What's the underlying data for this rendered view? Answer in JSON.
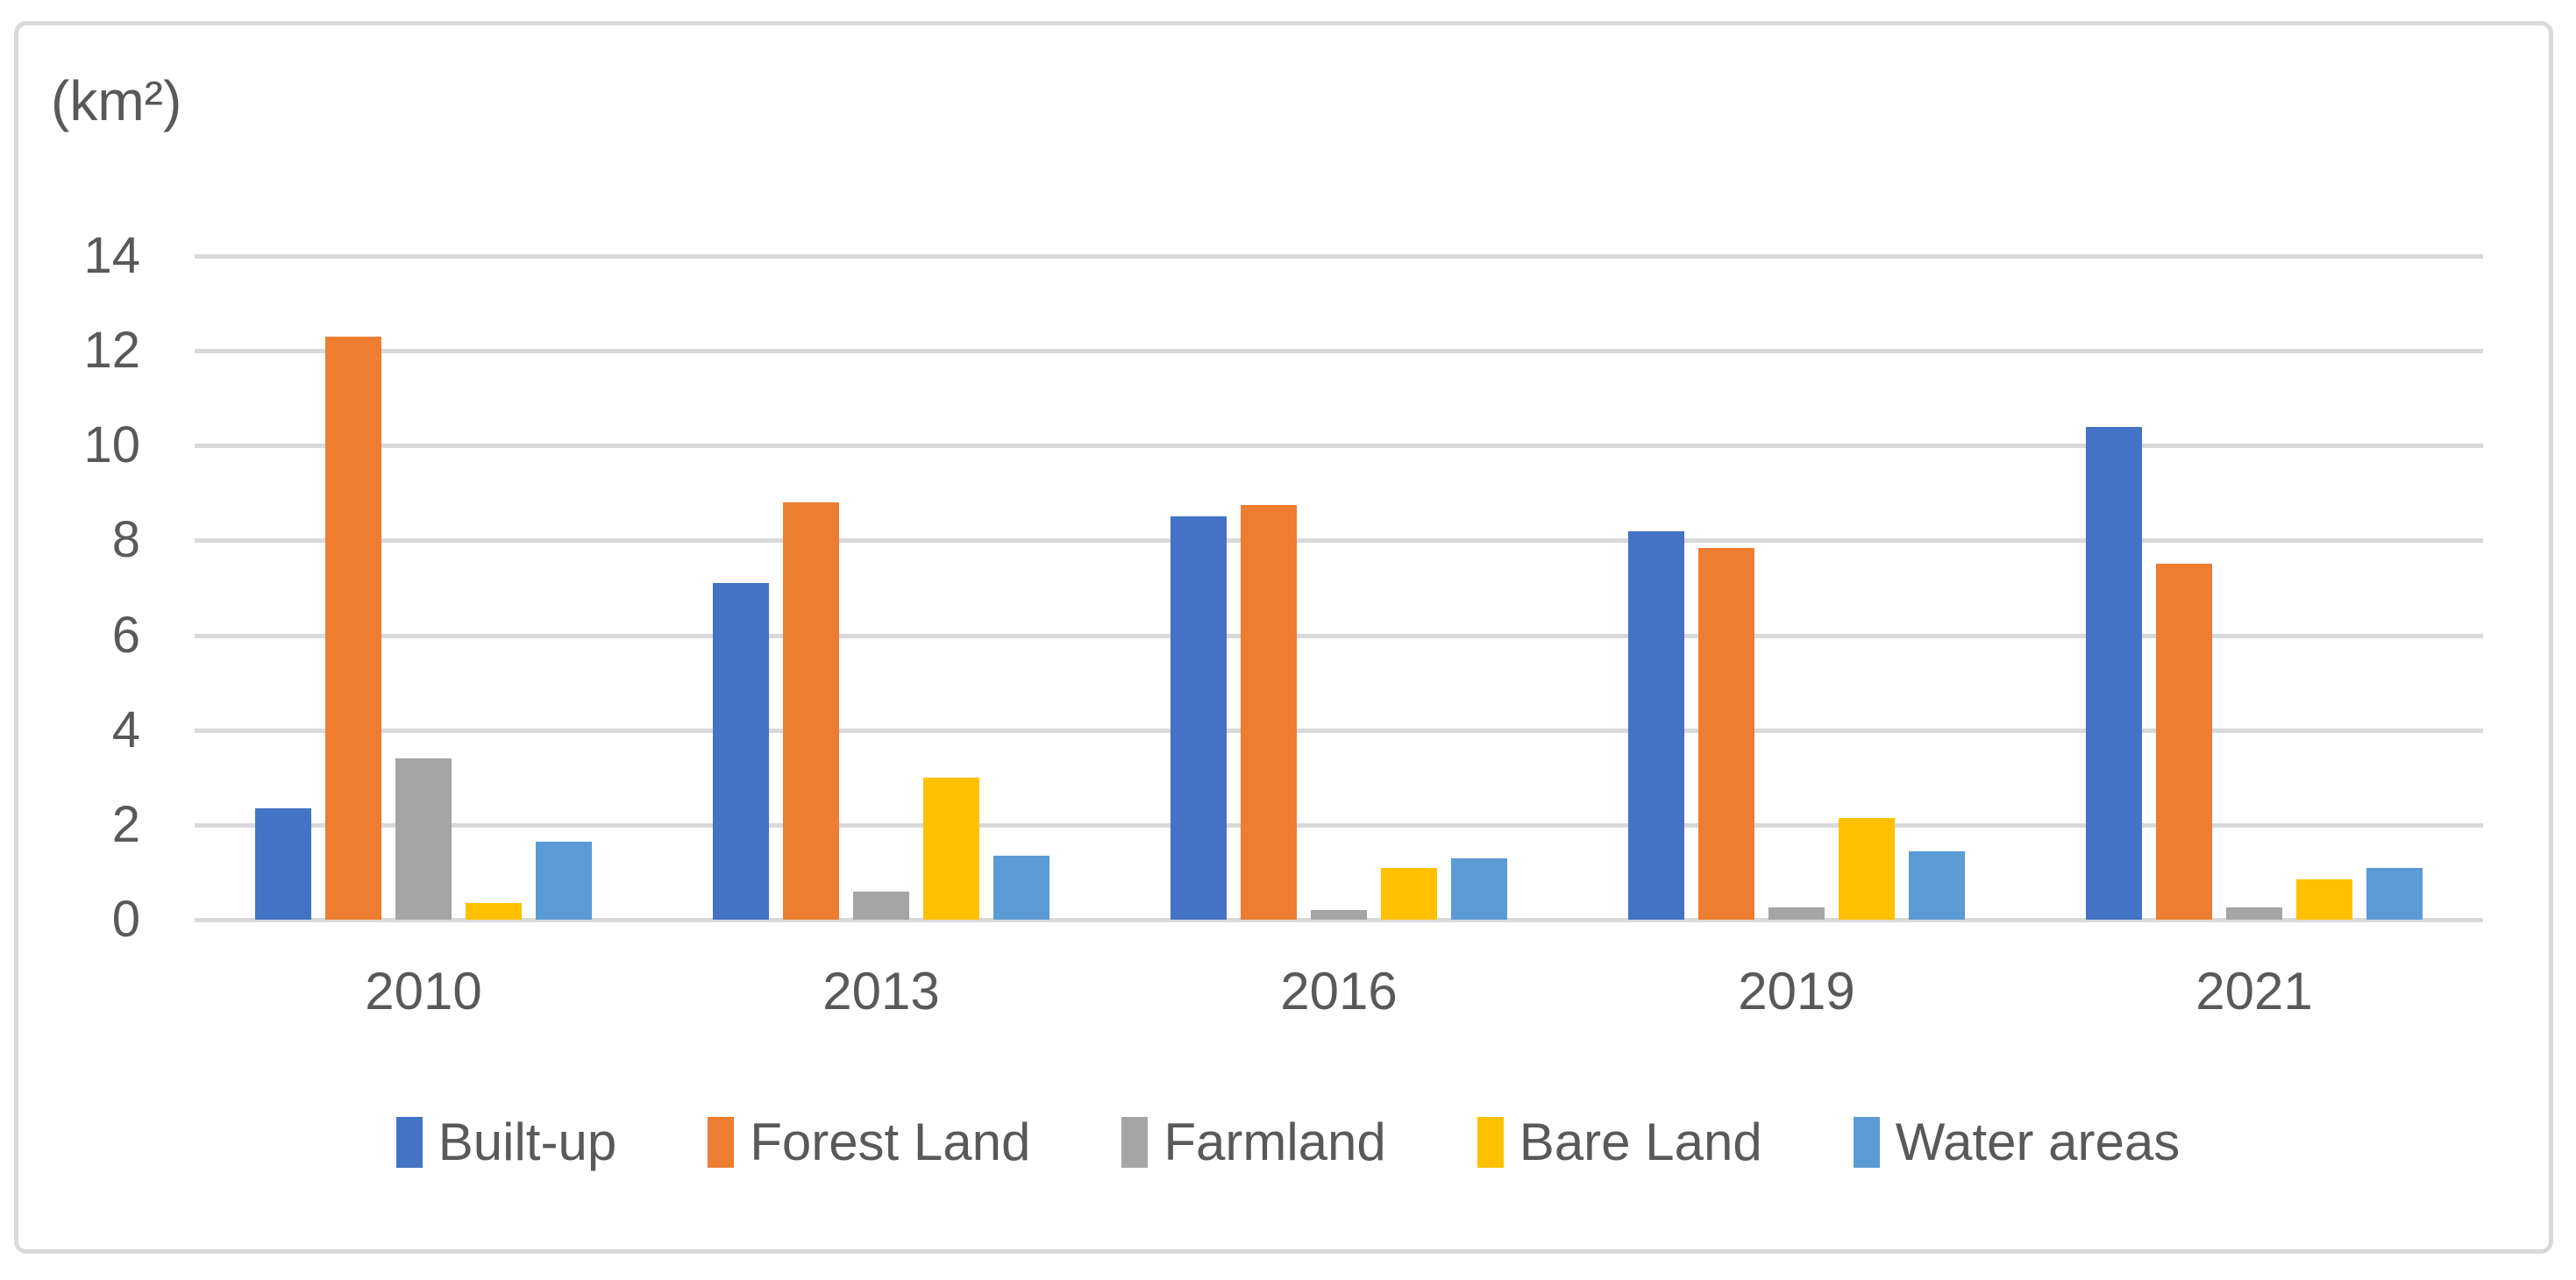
{
  "chart_data": {
    "type": "bar",
    "title": "(km²)",
    "categories": [
      "2010",
      "2013",
      "2016",
      "2019",
      "2021"
    ],
    "series": [
      {
        "name": "Built-up",
        "color": "#4472C4",
        "values": [
          2.35,
          7.1,
          8.5,
          8.2,
          10.4
        ]
      },
      {
        "name": "Forest Land",
        "color": "#ED7D31",
        "values": [
          12.3,
          8.8,
          8.75,
          7.85,
          7.5
        ]
      },
      {
        "name": "Farmland",
        "color": "#A5A5A5",
        "values": [
          3.4,
          0.6,
          0.2,
          0.25,
          0.25
        ]
      },
      {
        "name": "Bare Land",
        "color": "#FFC000",
        "values": [
          0.35,
          3.0,
          1.1,
          2.15,
          0.85
        ]
      },
      {
        "name": "Water areas",
        "color": "#5B9BD5",
        "values": [
          1.65,
          1.35,
          1.3,
          1.45,
          1.1
        ]
      }
    ],
    "ylabel": "(km²)",
    "xlabel": "",
    "ylim": [
      0,
      14
    ],
    "yticks": [
      0,
      2,
      4,
      6,
      8,
      10,
      12,
      14
    ],
    "grid": "horizontal",
    "legend_position": "bottom",
    "colors": {
      "axis_text": "#595959",
      "gridline": "#D9D9D9",
      "frame_border": "#D9D9D9",
      "background": "#FFFFFF"
    }
  }
}
